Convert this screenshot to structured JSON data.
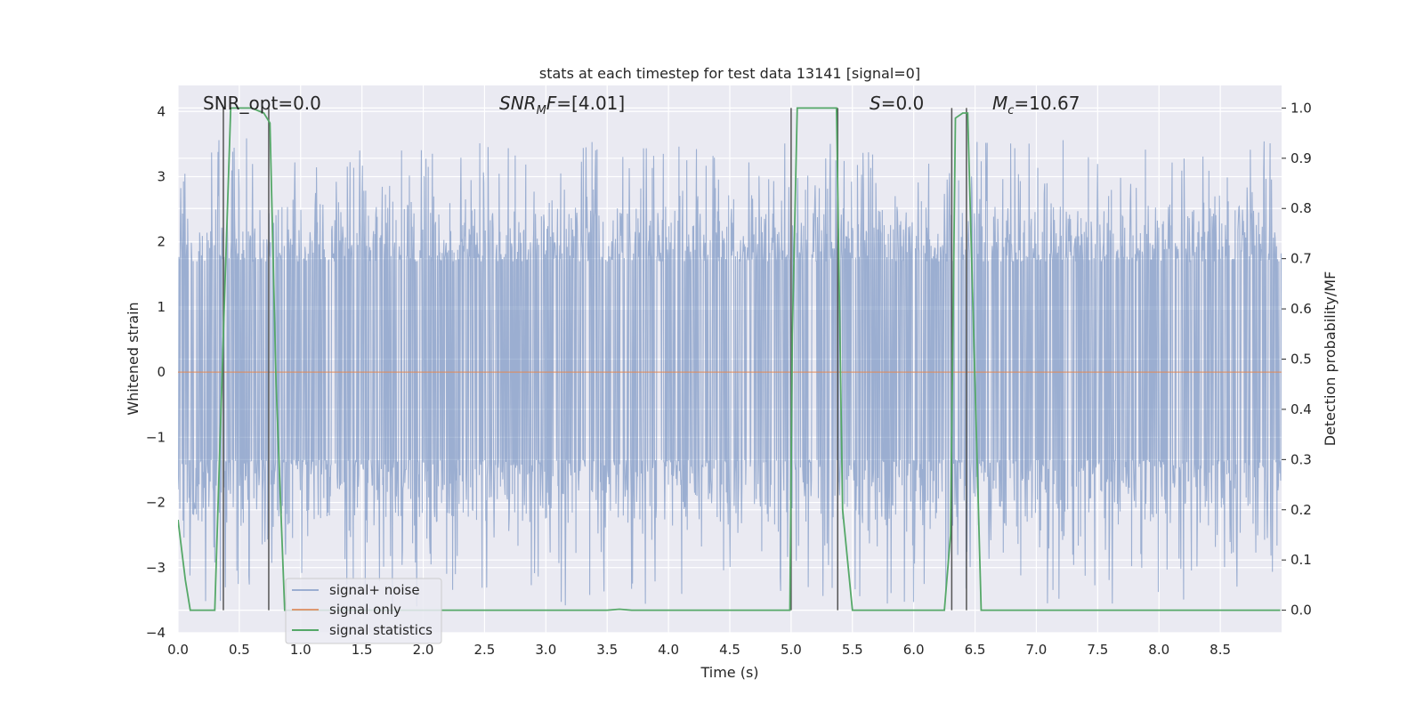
{
  "chart_data": {
    "type": "line",
    "title": "stats at each timestep for test data 13141 [signal=0]",
    "xlabel": "Time (s)",
    "ylabel_left": "Whitened strain",
    "ylabel_right": "Detection probability/MF",
    "xlim": [
      0,
      9.0
    ],
    "ylim_left": [
      -4.0,
      4.4
    ],
    "ylim_right": [
      -0.045,
      1.045
    ],
    "xticks": [
      "0.0",
      "0.5",
      "1.0",
      "1.5",
      "2.0",
      "2.5",
      "3.0",
      "3.5",
      "4.0",
      "4.5",
      "5.0",
      "5.5",
      "6.0",
      "6.5",
      "7.0",
      "7.5",
      "8.0",
      "8.5"
    ],
    "yticks_left": [
      "4",
      "3",
      "2",
      "1",
      "0",
      "−1",
      "−2",
      "−3",
      "−4"
    ],
    "yticks_left_values": [
      4,
      3,
      2,
      1,
      0,
      -1,
      -2,
      -3,
      -4
    ],
    "yticks_right": [
      "1.0",
      "0.9",
      "0.8",
      "0.7",
      "0.6",
      "0.5",
      "0.4",
      "0.3",
      "0.2",
      "0.1",
      "0.0"
    ],
    "yticks_right_values": [
      1.0,
      0.9,
      0.8,
      0.7,
      0.6,
      0.5,
      0.4,
      0.3,
      0.2,
      0.1,
      0.0
    ],
    "grid": true,
    "legend_position": "lower-left",
    "annotations": [
      {
        "id": "snr-opt",
        "text": "SNR_opt=0.0",
        "x": 0.19
      },
      {
        "id": "snr-mf",
        "text": "SNR",
        "sub": "M",
        "suffix": "F=[4.01]",
        "x": 2.6
      },
      {
        "id": "s-stat",
        "text": "S",
        "suffix": "=0.0",
        "x": 5.6
      },
      {
        "id": "chirp-mass",
        "text": "M",
        "sub": "c",
        "suffix": "=10.67",
        "x": 6.6
      }
    ],
    "series": [
      {
        "name": "signal+ noise",
        "axis": "left",
        "color": "#4c72b0",
        "style": "noise",
        "noise_band": [
          -1.35,
          1.7
        ],
        "noise_extreme": [
          -3.6,
          3.6
        ]
      },
      {
        "name": "signal only",
        "axis": "left",
        "color": "#dd8452",
        "x": [
          0,
          9.0
        ],
        "values": [
          0,
          0
        ]
      },
      {
        "name": "signal statistics",
        "axis": "right",
        "color": "#55a868",
        "x": [
          0.0,
          0.06,
          0.1,
          0.3,
          0.37,
          0.43,
          0.5,
          0.6,
          0.7,
          0.75,
          0.8,
          0.87,
          0.95,
          3.5,
          3.6,
          3.7,
          4.99,
          5.01,
          5.05,
          5.37,
          5.42,
          5.5,
          6.25,
          6.3,
          6.34,
          6.4,
          6.44,
          6.55,
          8.99
        ],
        "values": [
          0.18,
          0.06,
          0.0,
          0.0,
          0.55,
          1.0,
          1.0,
          1.0,
          0.99,
          0.97,
          0.45,
          0.0,
          0.0,
          0.0,
          0.002,
          0.0,
          0.0,
          0.55,
          1.0,
          1.0,
          0.2,
          0.0,
          0.0,
          0.15,
          0.98,
          0.99,
          0.99,
          0.0,
          0.0
        ]
      }
    ],
    "vlines": [
      0.37,
      0.74,
      5.0,
      5.38,
      6.31,
      6.43
    ]
  }
}
